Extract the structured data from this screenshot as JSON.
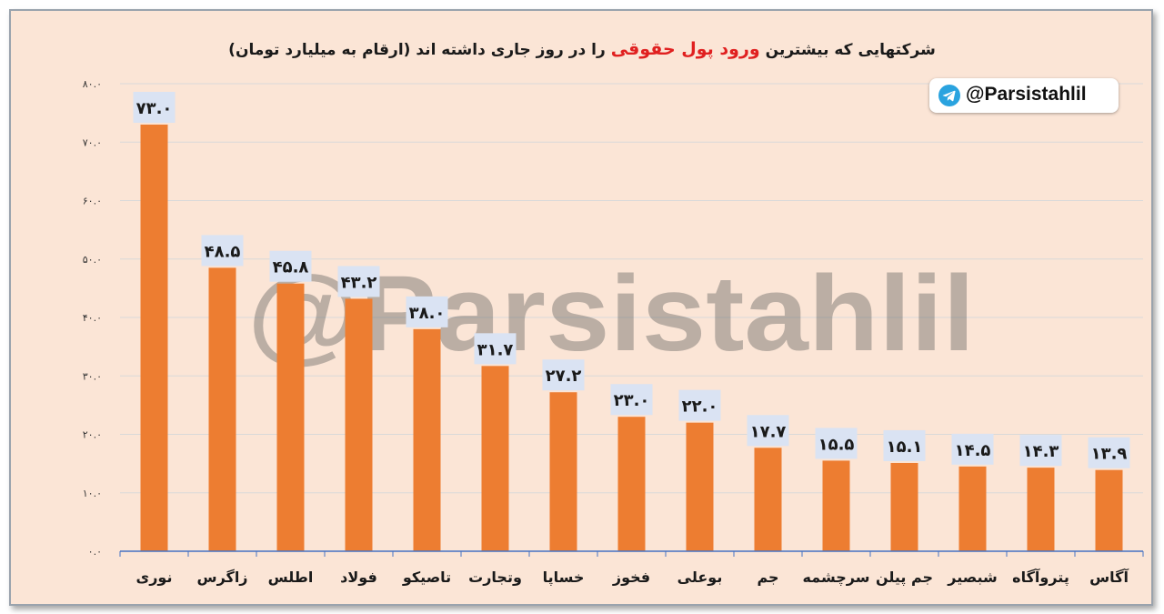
{
  "title": {
    "before": "شرکتهایی که بیشترین",
    "highlight": "ورود پول حقوقی",
    "after": "را در روز جاری داشته اند (ارقام به میلیارد تومان)"
  },
  "badge": {
    "handle": "@Parsistahlil",
    "icon": "telegram-icon"
  },
  "watermark": "@Parsistahlil",
  "colors": {
    "bar": "#ed7d31",
    "label_bg": "#dae3f3",
    "axis": "#4472c4",
    "grid": "#d9d9d9",
    "title_highlight": "#e02020"
  },
  "chart_data": {
    "type": "bar",
    "categories": [
      "نوری",
      "زاگرس",
      "اطلس",
      "فولاد",
      "تاصیکو",
      "وتجارت",
      "خساپا",
      "فخوز",
      "بوعلی",
      "جم",
      "سرچشمه",
      "جم پیلن",
      "شبصیر",
      "پتروآگاه",
      "آگاس"
    ],
    "values": [
      73.0,
      48.5,
      45.8,
      43.2,
      38.0,
      31.7,
      27.2,
      23.0,
      22.0,
      17.7,
      15.5,
      15.1,
      14.5,
      14.3,
      13.9
    ],
    "value_labels": [
      "۷۳.۰",
      "۴۸.۵",
      "۴۵.۸",
      "۴۳.۲",
      "۳۸.۰",
      "۳۱.۷",
      "۲۷.۲",
      "۲۳.۰",
      "۲۲.۰",
      "۱۷.۷",
      "۱۵.۵",
      "۱۵.۱",
      "۱۴.۵",
      "۱۴.۳",
      "۱۳.۹"
    ],
    "ylim": [
      0,
      80
    ],
    "yticks": [
      0,
      10,
      20,
      30,
      40,
      50,
      60,
      70,
      80
    ],
    "ytick_labels": [
      "۰.۰",
      "۱۰.۰",
      "۲۰.۰",
      "۳۰.۰",
      "۴۰.۰",
      "۵۰.۰",
      "۶۰.۰",
      "۷۰.۰",
      "۸۰.۰"
    ],
    "grid": true
  }
}
